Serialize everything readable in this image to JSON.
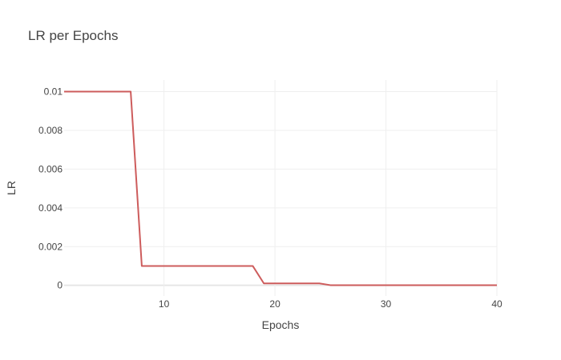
{
  "chart_data": {
    "type": "line",
    "title": "LR per Epochs",
    "xlabel": "Epochs",
    "ylabel": "LR",
    "xlim": [
      1,
      40
    ],
    "ylim": [
      -0.00055,
      0.0106
    ],
    "xticks": [
      10,
      20,
      30,
      40
    ],
    "yticks": [
      0,
      0.002,
      0.004,
      0.006,
      0.008,
      0.01
    ],
    "ytick_labels": [
      "0",
      "0.002",
      "0.004",
      "0.006",
      "0.008",
      "0.01"
    ],
    "grid": true,
    "legend": "none",
    "series": [
      {
        "color": "#cd5c5c",
        "x": [
          1,
          2,
          3,
          4,
          5,
          6,
          7,
          8,
          9,
          10,
          11,
          12,
          13,
          14,
          15,
          16,
          17,
          18,
          19,
          20,
          21,
          22,
          23,
          24,
          25,
          26,
          27,
          28,
          29,
          30,
          31,
          32,
          33,
          34,
          35,
          36,
          37,
          38,
          39,
          40
        ],
        "y": [
          0.01,
          0.01,
          0.01,
          0.01,
          0.01,
          0.01,
          0.01,
          0.001,
          0.001,
          0.001,
          0.001,
          0.001,
          0.001,
          0.001,
          0.001,
          0.001,
          0.001,
          0.001,
          0.0001,
          0.0001,
          0.0001,
          0.0001,
          0.0001,
          0.0001,
          1e-05,
          1e-05,
          1e-05,
          1e-05,
          1e-05,
          1e-05,
          1e-05,
          1e-05,
          1e-05,
          1e-05,
          1e-05,
          1e-05,
          1e-05,
          1e-05,
          1e-05,
          1e-05
        ]
      }
    ]
  }
}
